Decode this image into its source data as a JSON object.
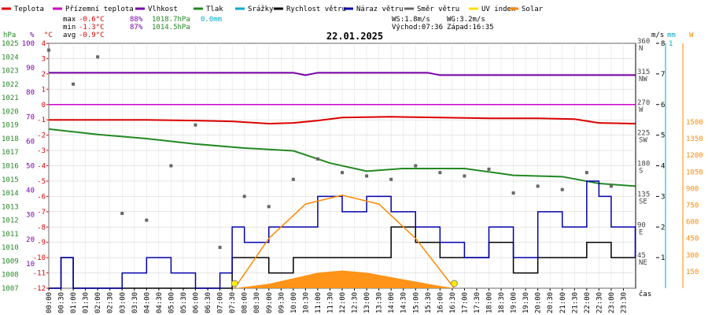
{
  "legend": [
    {
      "label": "Teplota",
      "color": "#dd0000"
    },
    {
      "label": "Přízemní teplota",
      "color": "#cc00cc"
    },
    {
      "label": "Vlhkost",
      "color": "#7700aa"
    },
    {
      "label": "Tlak",
      "color": "#228822"
    },
    {
      "label": "Srážky",
      "color": "#00aacc"
    },
    {
      "label": "Rychlost větru",
      "color": "#000000"
    },
    {
      "label": "Náraz větru",
      "color": "#0000aa"
    },
    {
      "label": "Směr větru",
      "color": "#666666"
    },
    {
      "label": "UV index",
      "color": "#ffdd00"
    },
    {
      "label": "Solar",
      "color": "#ff8800"
    }
  ],
  "stats": {
    "max_label": "max",
    "max_temp": "-0.6°C",
    "max_hum": "88%",
    "max_press": "1018.7hPa",
    "rain": "0.0mm",
    "min_label": "min",
    "min_temp": "-1.3°C",
    "min_hum": "87%",
    "min_press": "1014.5hPa",
    "avg_label": "avg",
    "avg_temp": "-0.9°C",
    "ws": "WS:1.8m/s",
    "wg": "WG:3.2m/s",
    "sunrise": "Východ:07:36",
    "sunset": "Západ:16:35"
  },
  "chart_data": {
    "type": "line",
    "title": "22.01.2025",
    "xlabel": "čas",
    "axes": {
      "hPa": {
        "label": "hPa",
        "ticks": [
          1007,
          1008,
          1009,
          1010,
          1011,
          1012,
          1013,
          1014,
          1015,
          1016,
          1017,
          1018,
          1019,
          1020,
          1021,
          1022,
          1023,
          1024,
          1025
        ],
        "color": "#228822"
      },
      "pct": {
        "label": "%",
        "ticks": [
          10,
          20,
          30,
          40,
          50,
          60,
          70,
          80,
          90,
          100
        ],
        "color": "#7700aa"
      },
      "temp": {
        "label": "°C",
        "ticks": [
          -12,
          -11,
          -10,
          -9,
          -8,
          -7,
          -6,
          -5,
          -4,
          -3,
          -2,
          -1,
          0,
          1,
          2,
          3,
          4
        ],
        "color": "#dd0000"
      },
      "dir": {
        "ticks": [
          "45 NE",
          "90 E",
          "135 SE",
          "180 S",
          "225 SW",
          "270 W",
          "315 NW",
          "360 N"
        ]
      },
      "ms": {
        "label": "m/s",
        "ticks": [
          1,
          2,
          3,
          4,
          5,
          6,
          7,
          8
        ]
      },
      "mm": {
        "label": "mm",
        "ticks": [
          1
        ]
      },
      "wm2": {
        "label": "W",
        "ticks": [
          150,
          300,
          450,
          600,
          750,
          900,
          1050,
          1200,
          1350,
          1500
        ]
      }
    },
    "x_ticks": [
      "00:00",
      "00:30",
      "01:00",
      "01:30",
      "02:00",
      "02:30",
      "03:00",
      "03:30",
      "04:00",
      "04:30",
      "05:00",
      "05:30",
      "06:00",
      "06:30",
      "07:00",
      "07:30",
      "08:00",
      "08:30",
      "09:00",
      "09:30",
      "10:00",
      "10:30",
      "11:00",
      "11:30",
      "12:00",
      "12:30",
      "13:00",
      "13:30",
      "14:00",
      "14:30",
      "15:00",
      "15:30",
      "16:00",
      "16:30",
      "17:00",
      "17:30",
      "18:00",
      "18:30",
      "19:00",
      "19:30",
      "20:00",
      "20:30",
      "21:00",
      "21:30",
      "22:00",
      "22:30",
      "23:00",
      "23:30"
    ],
    "series": [
      {
        "name": "Teplota",
        "unit": "°C",
        "color": "#dd0000",
        "x": [
          "00:00",
          "02:00",
          "04:00",
          "06:00",
          "07:30",
          "09:00",
          "10:00",
          "11:00",
          "12:00",
          "14:00",
          "16:00",
          "18:00",
          "20:00",
          "21:30",
          "22:30",
          "23:59"
        ],
        "y": [
          -1.0,
          -1.0,
          -1.0,
          -1.05,
          -1.1,
          -1.25,
          -1.2,
          -1.05,
          -0.85,
          -0.8,
          -0.85,
          -0.9,
          -0.9,
          -0.95,
          -1.2,
          -1.25
        ]
      },
      {
        "name": "Přízemní teplota",
        "unit": "°C",
        "color": "#cc00cc",
        "x": [
          "00:00",
          "23:59"
        ],
        "y": [
          0.0,
          0.0
        ]
      },
      {
        "name": "Vlhkost",
        "unit": "%",
        "color": "#7700aa",
        "x": [
          "00:00",
          "10:00",
          "10:30",
          "11:00",
          "15:30",
          "16:00",
          "23:59"
        ],
        "y": [
          88,
          88,
          87,
          88,
          88,
          87,
          87
        ]
      },
      {
        "name": "Tlak",
        "unit": "hPa",
        "color": "#228822",
        "x": [
          "00:00",
          "02:00",
          "04:00",
          "06:00",
          "08:00",
          "10:00",
          "11:30",
          "13:00",
          "14:30",
          "17:00",
          "19:00",
          "21:00",
          "22:30",
          "23:59"
        ],
        "y": [
          1018.7,
          1018.3,
          1018.0,
          1017.6,
          1017.3,
          1017.1,
          1016.2,
          1015.6,
          1015.8,
          1015.8,
          1015.3,
          1015.2,
          1014.7,
          1014.5
        ]
      },
      {
        "name": "Rychlost větru",
        "unit": "m/s",
        "color": "#000000",
        "x": [
          "00:00",
          "00:30",
          "01:00",
          "03:00",
          "05:00",
          "06:30",
          "07:30",
          "08:00",
          "09:00",
          "10:00",
          "11:00",
          "12:00",
          "13:00",
          "14:00",
          "15:00",
          "16:00",
          "17:00",
          "18:00",
          "19:00",
          "20:00",
          "21:00",
          "22:00",
          "23:00",
          "23:59"
        ],
        "y": [
          0,
          1,
          0,
          0,
          0,
          0,
          1,
          1,
          0.5,
          1,
          1,
          1,
          1,
          2,
          1.5,
          1,
          1,
          1.5,
          0.5,
          1,
          1,
          1.5,
          1,
          1
        ]
      },
      {
        "name": "Náraz větru",
        "unit": "m/s",
        "color": "#0000aa",
        "x": [
          "00:00",
          "00:30",
          "01:00",
          "03:00",
          "04:00",
          "05:00",
          "06:00",
          "07:00",
          "07:30",
          "08:00",
          "09:00",
          "10:00",
          "11:00",
          "12:00",
          "13:00",
          "14:00",
          "15:00",
          "16:00",
          "17:00",
          "18:00",
          "19:00",
          "20:00",
          "21:00",
          "22:00",
          "22:30",
          "23:00",
          "23:59"
        ],
        "y": [
          0,
          1,
          0,
          0.5,
          1,
          0.5,
          0,
          0.5,
          2,
          1.5,
          2,
          2,
          3,
          2.5,
          3,
          2.5,
          2,
          1.5,
          1,
          2,
          1,
          2.5,
          2,
          3.5,
          3,
          2,
          1
        ]
      },
      {
        "name": "Směr větru",
        "unit": "°",
        "color": "#666666",
        "x": [
          "00:00",
          "01:00",
          "02:00",
          "03:00",
          "04:00",
          "05:00",
          "06:00",
          "07:00",
          "08:00",
          "09:00",
          "10:00",
          "11:00",
          "12:00",
          "13:00",
          "14:00",
          "15:00",
          "16:00",
          "17:00",
          "18:00",
          "19:00",
          "20:00",
          "21:00",
          "22:00",
          "23:00"
        ],
        "y": [
          350,
          300,
          340,
          110,
          100,
          180,
          240,
          60,
          135,
          120,
          160,
          190,
          170,
          165,
          160,
          180,
          170,
          165,
          175,
          140,
          150,
          145,
          170,
          150
        ]
      },
      {
        "name": "Solar",
        "unit": "W",
        "color": "#ff8800",
        "x": [
          "07:36",
          "09:00",
          "10:00",
          "11:00",
          "12:00",
          "13:00",
          "14:00",
          "15:00",
          "16:00",
          "16:35"
        ],
        "y": [
          0,
          40,
          90,
          140,
          160,
          140,
          100,
          60,
          20,
          0
        ]
      },
      {
        "name": "Solar max",
        "unit": "W",
        "color": "#ff8800",
        "x": [
          "07:36",
          "09:00",
          "10:30",
          "12:00",
          "13:30",
          "15:00",
          "16:35"
        ],
        "y": [
          0,
          450,
          760,
          840,
          760,
          450,
          0
        ]
      }
    ]
  }
}
